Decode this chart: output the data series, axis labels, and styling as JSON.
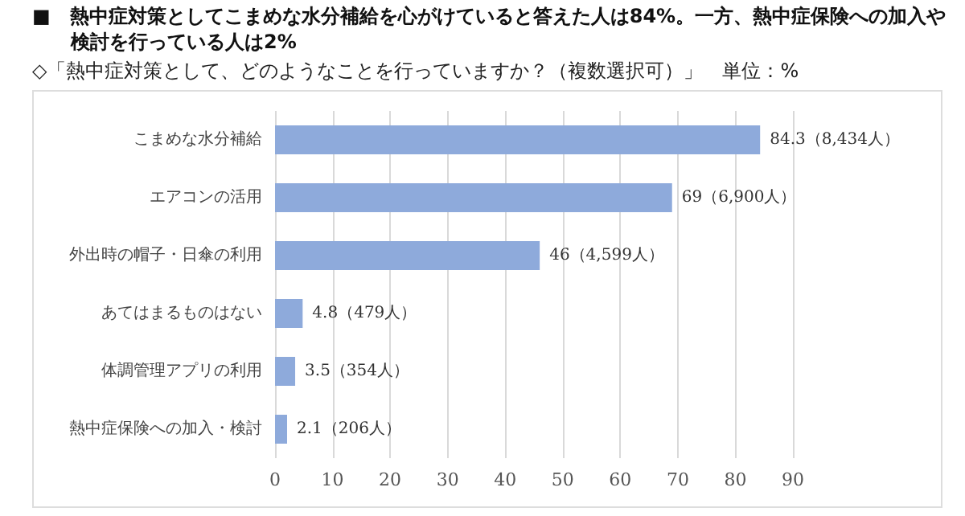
{
  "chart_data": {
    "type": "bar",
    "orientation": "horizontal",
    "title": "■　熱中症対策としてこまめな水分補給を心がけていると答えた人は84%。一方、熱中症保険への加入や検討を行っている人は2%",
    "subtitle": "◇「熱中症対策として、どのようなことを行っていますか？（複数選択可）」　単位：%",
    "categories": [
      "こまめな水分補給",
      "エアコンの活用",
      "外出時の帽子・日傘の利用",
      "あてはまるものはない",
      "体調管理アプリの利用",
      "熱中症保険への加入・検討"
    ],
    "values": [
      84.3,
      69,
      46,
      4.8,
      3.5,
      2.1
    ],
    "value_labels": [
      "84.3（8,434人）",
      "69（6,900人）",
      "46（4,599人）",
      "4.8（479人）",
      "3.5（354人）",
      "2.1（206人）"
    ],
    "color": "#8eaadb",
    "xlim": [
      0,
      90
    ],
    "xticks": [
      0,
      10,
      20,
      30,
      40,
      50,
      60,
      70,
      80,
      90
    ],
    "grid": "x"
  }
}
